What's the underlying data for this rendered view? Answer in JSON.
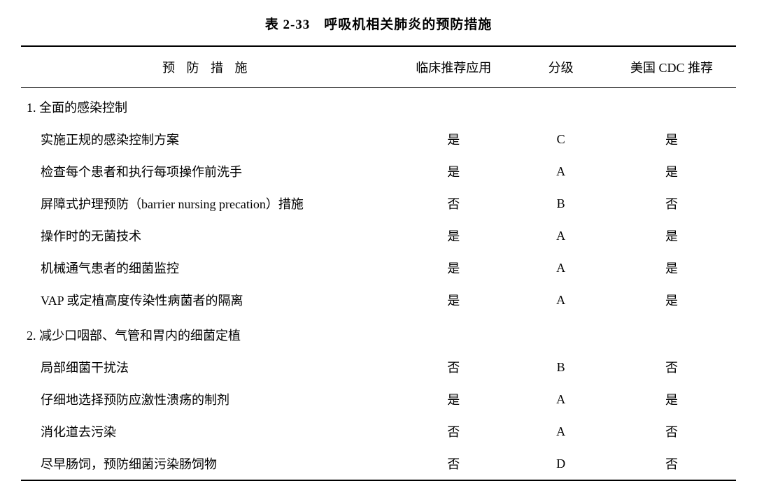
{
  "title": "表 2-33　呼吸机相关肺炎的预防措施",
  "columns": {
    "measure": "预 防 措 施",
    "clinical": "临床推荐应用",
    "grade": "分级",
    "cdc": "美国 CDC 推荐"
  },
  "sections": [
    {
      "heading": "1. 全面的感染控制",
      "rows": [
        {
          "measure": "实施正规的感染控制方案",
          "clinical": "是",
          "grade": "C",
          "cdc": "是"
        },
        {
          "measure": "检查每个患者和执行每项操作前洗手",
          "clinical": "是",
          "grade": "A",
          "cdc": "是"
        },
        {
          "measure": "屏障式护理预防（barrier nursing precation）措施",
          "clinical": "否",
          "grade": "B",
          "cdc": "否"
        },
        {
          "measure": "操作时的无菌技术",
          "clinical": "是",
          "grade": "A",
          "cdc": "是"
        },
        {
          "measure": "机械通气患者的细菌监控",
          "clinical": "是",
          "grade": "A",
          "cdc": "是"
        },
        {
          "measure": "VAP 或定植高度传染性病菌者的隔离",
          "clinical": "是",
          "grade": "A",
          "cdc": "是"
        }
      ]
    },
    {
      "heading": "2. 减少口咽部、气管和胃内的细菌定植",
      "rows": [
        {
          "measure": "局部细菌干扰法",
          "clinical": "否",
          "grade": "B",
          "cdc": "否"
        },
        {
          "measure": "仔细地选择预防应激性溃疡的制剂",
          "clinical": "是",
          "grade": "A",
          "cdc": "是"
        },
        {
          "measure": "消化道去污染",
          "clinical": "否",
          "grade": "A",
          "cdc": "否"
        },
        {
          "measure": "尽早肠饲，预防细菌污染肠饲物",
          "clinical": "否",
          "grade": "D",
          "cdc": "否"
        }
      ]
    }
  ]
}
